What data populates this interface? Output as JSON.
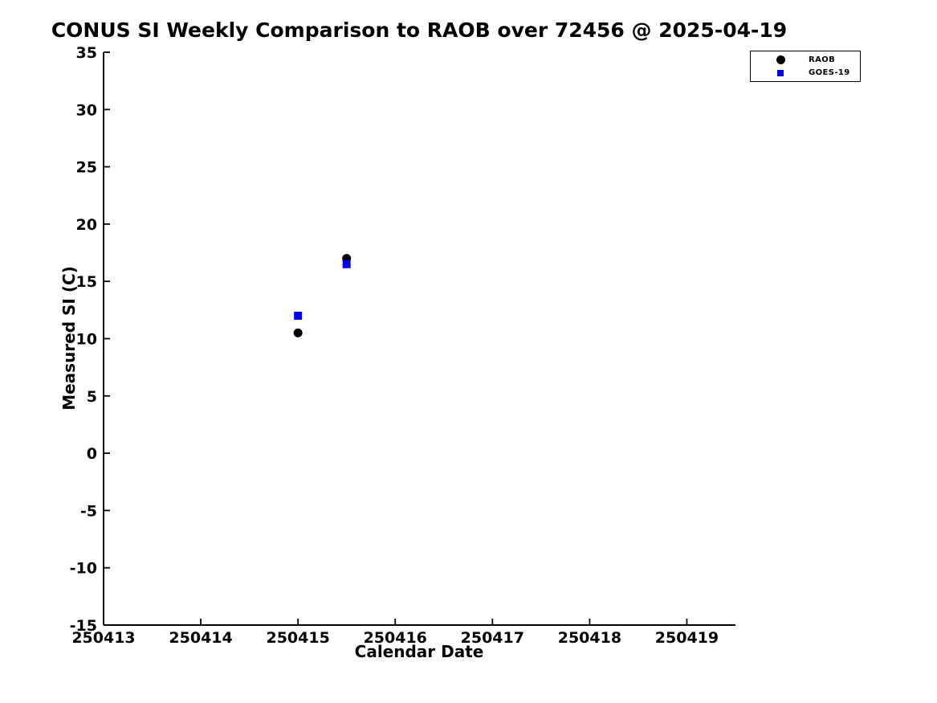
{
  "chart_data": {
    "type": "scatter",
    "title": "CONUS SI Weekly Comparison to RAOB over 72456 @ 2025-04-19",
    "xlabel": "Calendar Date",
    "ylabel": "Measured SI (C)",
    "xlim": [
      250413,
      250419.5
    ],
    "ylim": [
      -15,
      35
    ],
    "xticks": [
      250413,
      250414,
      250415,
      250416,
      250417,
      250418,
      250419
    ],
    "yticks": [
      -15,
      -10,
      -5,
      0,
      5,
      10,
      15,
      20,
      25,
      30,
      35
    ],
    "grid": false,
    "background_color": "#ffffff",
    "axis_color": "#000000",
    "legend_position": "top-right",
    "series": [
      {
        "name": "RAOB",
        "marker": "circle",
        "color": "#000000",
        "points": [
          [
            250415.0,
            10.5
          ],
          [
            250415.5,
            17.0
          ]
        ]
      },
      {
        "name": "GOES-19",
        "marker": "square",
        "color": "#0000ff",
        "points": [
          [
            250415.0,
            12.0
          ],
          [
            250415.5,
            16.5
          ]
        ]
      }
    ]
  }
}
